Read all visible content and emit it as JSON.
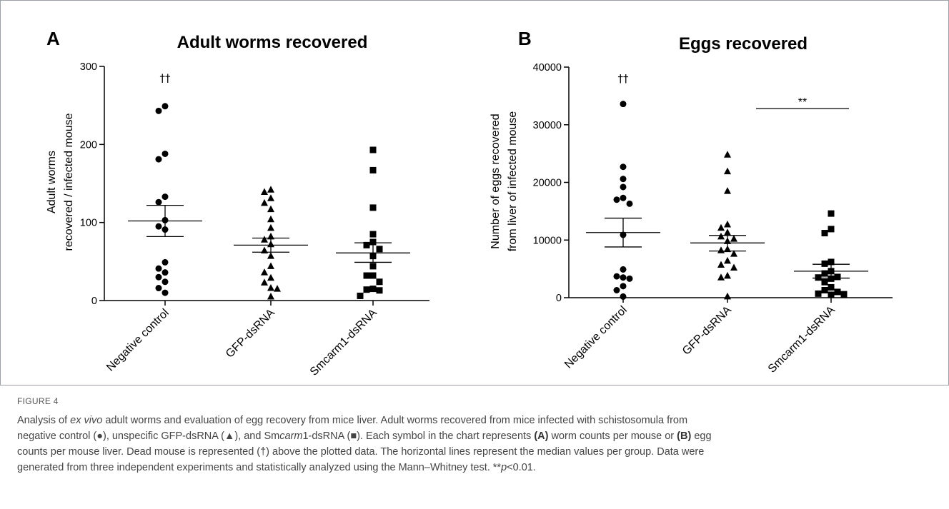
{
  "chart_data": [
    {
      "type": "scatter",
      "panel": "A",
      "title": "Adult worms recovered",
      "ylabel_line1": "Adult worms",
      "ylabel_line2": "recovered / infected mouse",
      "ylim": [
        0,
        300
      ],
      "yticks": [
        0,
        100,
        200,
        300
      ],
      "categories": [
        "Negative control",
        "GFP-dsRNA",
        "Smcarm1-dsRNA"
      ],
      "markers": [
        "circle",
        "triangle",
        "square"
      ],
      "annotation": {
        "text": "††",
        "category": 0,
        "y": 285
      },
      "series": [
        {
          "values": [
            249,
            243,
            188,
            181,
            133,
            126,
            103,
            95,
            91,
            49,
            41,
            36,
            30,
            24,
            16,
            10
          ],
          "mean": 102,
          "err_low": 82,
          "err_high": 122
        },
        {
          "values": [
            142,
            139,
            131,
            125,
            117,
            104,
            93,
            82,
            78,
            72,
            64,
            57,
            44,
            36,
            29,
            23,
            16,
            15,
            5
          ],
          "mean": 71,
          "err_low": 62,
          "err_high": 80
        },
        {
          "values": [
            193,
            167,
            119,
            85,
            75,
            71,
            66,
            57,
            44,
            32,
            32,
            24,
            15,
            14,
            13,
            6
          ],
          "mean": 61,
          "err_low": 49,
          "err_high": 74
        }
      ]
    },
    {
      "type": "scatter",
      "panel": "B",
      "title": "Eggs recovered",
      "ylabel_line1": "Number of eggs recovered",
      "ylabel_line2": "from liver of infected mouse",
      "ylim": [
        0,
        40000
      ],
      "yticks": [
        0,
        10000,
        20000,
        30000,
        40000
      ],
      "categories": [
        "Negative control",
        "GFP-dsRNA",
        "Smcarm1-dsRNA"
      ],
      "markers": [
        "circle",
        "triangle",
        "square"
      ],
      "annotation": {
        "text": "††",
        "category": 0,
        "y": 38000
      },
      "significance": {
        "text": "**",
        "from": 1,
        "to": 2,
        "y": 32800
      },
      "series": [
        {
          "values": [
            33600,
            22700,
            20600,
            19200,
            17300,
            17000,
            16300,
            10900,
            4900,
            3700,
            3500,
            3300,
            2000,
            1300,
            200
          ],
          "mean": 11300,
          "err_low": 8800,
          "err_high": 13800
        },
        {
          "values": [
            24800,
            21900,
            18500,
            12700,
            12100,
            11300,
            10600,
            10200,
            9800,
            8400,
            8200,
            7600,
            6400,
            5700,
            5200,
            3800,
            3500,
            200
          ],
          "mean": 9500,
          "err_low": 8100,
          "err_high": 10800
        },
        {
          "values": [
            14600,
            11900,
            11200,
            6200,
            5900,
            4600,
            4200,
            3600,
            3500,
            3300,
            2700,
            1800,
            1300,
            1000,
            700,
            600,
            500
          ],
          "mean": 4600,
          "err_low": 3400,
          "err_high": 5800
        }
      ]
    }
  ],
  "caption": {
    "figure_label": "FIGURE 4",
    "line1_a": "Analysis of ",
    "line1_italic": "ex vivo",
    "line1_b": " adult worms and evaluation of egg recovery from mice liver. Adult worms recovered from mice infected with schistosomula from",
    "line2_a": "negative control (●), unspecific GFP-dsRNA (▲), and Sm",
    "line2_italic": "carm",
    "line2_b": "1-dsRNA (■). Each symbol in the chart represents ",
    "line2_bold_a": "(A)",
    "line2_c": " worm counts per mouse or ",
    "line2_bold_b": "(B)",
    "line2_d": " egg",
    "line3": "counts per mouse liver. Dead mouse is represented (†) above the plotted data. The horizontal lines represent the median values per group. Data were",
    "line4_a": "generated from three independent experiments and statistically analyzed using the Mann–Whitney test. **",
    "line4_italic": "p",
    "line4_b": "<0.01."
  }
}
